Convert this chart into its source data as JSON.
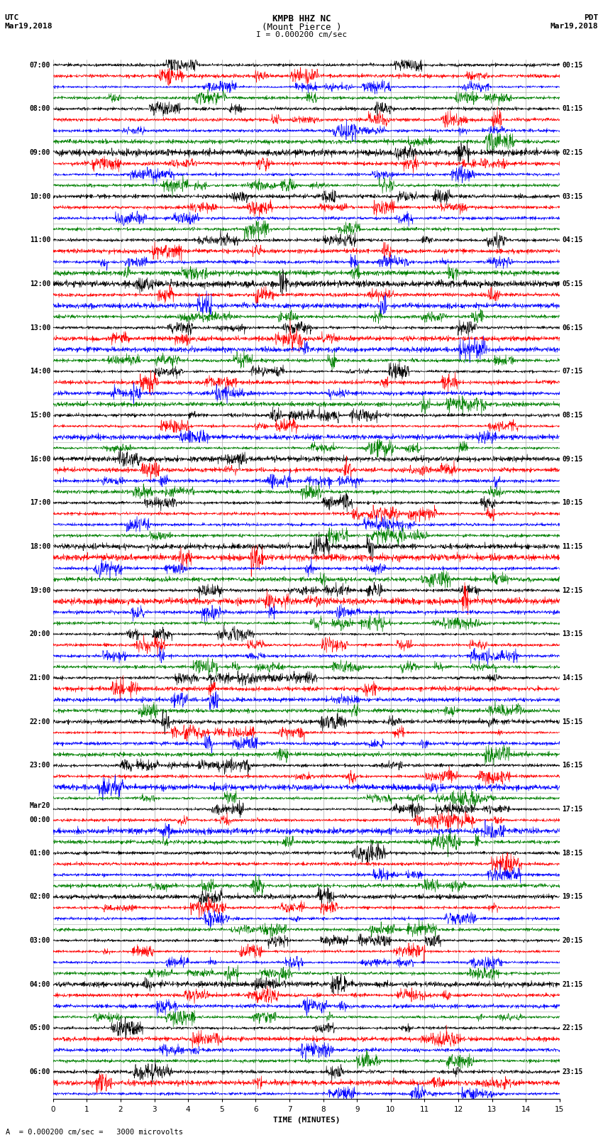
{
  "title_line1": "KMPB HHZ NC",
  "title_line2": "(Mount Pierce )",
  "title_line3": "I = 0.000200 cm/sec",
  "left_header_line1": "UTC",
  "left_header_line2": "Mar19,2018",
  "right_header_line1": "PDT",
  "right_header_line2": "Mar19,2018",
  "footer": "A  = 0.000200 cm/sec =   3000 microvolts",
  "xlabel": "TIME (MINUTES)",
  "left_times": [
    "07:00",
    "",
    "",
    "",
    "08:00",
    "",
    "",
    "",
    "09:00",
    "",
    "",
    "",
    "10:00",
    "",
    "",
    "",
    "11:00",
    "",
    "",
    "",
    "12:00",
    "",
    "",
    "",
    "13:00",
    "",
    "",
    "",
    "14:00",
    "",
    "",
    "",
    "15:00",
    "",
    "",
    "",
    "16:00",
    "",
    "",
    "",
    "17:00",
    "",
    "",
    "",
    "18:00",
    "",
    "",
    "",
    "19:00",
    "",
    "",
    "",
    "20:00",
    "",
    "",
    "",
    "21:00",
    "",
    "",
    "",
    "22:00",
    "",
    "",
    "",
    "23:00",
    "",
    "",
    "",
    "Mar20",
    "00:00",
    "",
    "",
    "01:00",
    "",
    "",
    "",
    "02:00",
    "",
    "",
    "",
    "03:00",
    "",
    "",
    "",
    "04:00",
    "",
    "",
    "",
    "05:00",
    "",
    "",
    "",
    "06:00",
    "",
    ""
  ],
  "right_times": [
    "00:15",
    "",
    "",
    "",
    "01:15",
    "",
    "",
    "",
    "02:15",
    "",
    "",
    "",
    "03:15",
    "",
    "",
    "",
    "04:15",
    "",
    "",
    "",
    "05:15",
    "",
    "",
    "",
    "06:15",
    "",
    "",
    "",
    "07:15",
    "",
    "",
    "",
    "08:15",
    "",
    "",
    "",
    "09:15",
    "",
    "",
    "",
    "10:15",
    "",
    "",
    "",
    "11:15",
    "",
    "",
    "",
    "12:15",
    "",
    "",
    "",
    "13:15",
    "",
    "",
    "",
    "14:15",
    "",
    "",
    "",
    "15:15",
    "",
    "",
    "",
    "16:15",
    "",
    "",
    "",
    "17:15",
    "",
    "",
    "",
    "18:15",
    "",
    "",
    "",
    "19:15",
    "",
    "",
    "",
    "20:15",
    "",
    "",
    "",
    "21:15",
    "",
    "",
    "",
    "22:15",
    "",
    "",
    "",
    "23:15",
    "",
    ""
  ],
  "colors": [
    "black",
    "red",
    "blue",
    "green"
  ],
  "n_rows": 95,
  "bg_color": "white",
  "xmin": 0,
  "xmax": 15,
  "xticks": [
    0,
    1,
    2,
    3,
    4,
    5,
    6,
    7,
    8,
    9,
    10,
    11,
    12,
    13,
    14,
    15
  ]
}
